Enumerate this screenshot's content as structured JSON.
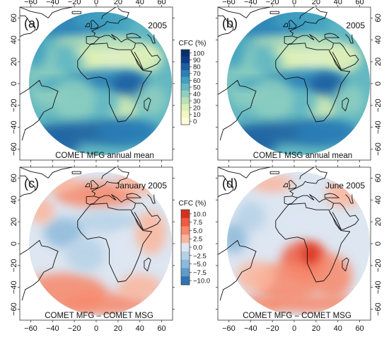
{
  "panels": [
    {
      "id": "a",
      "letter": "(a)",
      "period": "2005",
      "label": "COMET MFG annual mean",
      "kind": "mean"
    },
    {
      "id": "b",
      "letter": "(b)",
      "period": "2005",
      "label": "COMET MSG annual mean",
      "kind": "mean"
    },
    {
      "id": "c",
      "letter": "(c)",
      "period": "January 2005",
      "label": "COMET MFG – COMET MSG",
      "kind": "diff"
    },
    {
      "id": "d",
      "letter": "(d)",
      "period": "June 2005",
      "label": "COMET MFG – COMET MSG",
      "kind": "diff"
    }
  ],
  "axes": {
    "lon_ticks": [
      "−60",
      "−40",
      "−20",
      "0",
      "20",
      "40",
      "60"
    ],
    "lat_ticks": [
      "60",
      "40",
      "20",
      "0",
      "−20",
      "−40",
      "−60"
    ]
  },
  "colorbars": {
    "mean": {
      "title": "CFC (%)",
      "ticks": [
        "100",
        "90",
        "80",
        "70",
        "60",
        "50",
        "40",
        "30",
        "20",
        "10",
        "0"
      ],
      "colors": [
        "#08306b",
        "#0c3d8c",
        "#1d5fa0",
        "#2c7fb8",
        "#41a0c0",
        "#64b8c2",
        "#8fcfc0",
        "#b9e0b7",
        "#dcefb5",
        "#f2f8c4",
        "#ffffd9"
      ]
    },
    "diff": {
      "title": "CFC (%)",
      "ticks": [
        "10.0",
        "7.5",
        "5.0",
        "2.5",
        "0.0",
        "−2.5",
        "−5.0",
        "−7.5",
        "−10.0"
      ],
      "colors": [
        "#d7301f",
        "#ef5b42",
        "#f7886b",
        "#fbb59c",
        "#dde6f1",
        "#b6d1e6",
        "#8db9da",
        "#5f9ccb",
        "#2f74b2"
      ]
    }
  },
  "colors": {
    "land_outline": "#111111",
    "background": "#ffffff",
    "frame": "#333333"
  }
}
